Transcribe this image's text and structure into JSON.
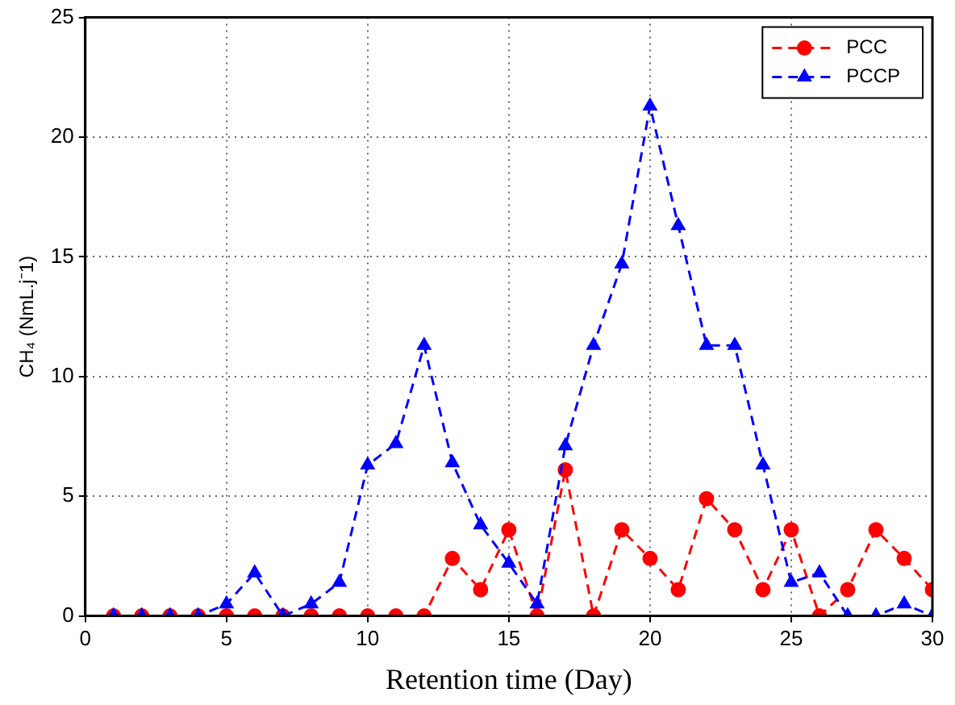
{
  "chart_data": {
    "type": "line",
    "xlabel": "Retention time (Day)",
    "ylabel": "CH₄ (NmL.j⁻1)",
    "x": [
      1,
      2,
      3,
      4,
      5,
      6,
      7,
      8,
      9,
      10,
      11,
      12,
      13,
      14,
      15,
      16,
      17,
      18,
      19,
      20,
      21,
      22,
      23,
      24,
      25,
      26,
      27,
      28,
      29,
      30
    ],
    "series": [
      {
        "name": "PCC",
        "color": "#ff0000",
        "marker": "circle",
        "values": [
          0,
          0,
          0,
          0,
          0,
          0,
          0,
          0,
          0,
          0,
          0,
          0,
          2.4,
          1.1,
          3.6,
          0,
          6.1,
          0,
          3.6,
          2.4,
          1.1,
          4.9,
          3.6,
          1.1,
          3.6,
          0,
          1.1,
          3.6,
          2.4,
          1.1
        ]
      },
      {
        "name": "PCCP",
        "color": "#0000ff",
        "marker": "triangle",
        "values": [
          0,
          0,
          0,
          0,
          0.5,
          1.8,
          0,
          0.5,
          1.4,
          6.3,
          7.2,
          11.3,
          6.4,
          3.8,
          2.2,
          0.5,
          7.1,
          11.3,
          14.7,
          21.3,
          16.3,
          11.3,
          11.3,
          6.3,
          1.4,
          1.8,
          0,
          0,
          0.5,
          0
        ]
      }
    ],
    "xlim": [
      0,
      30
    ],
    "xticks": [
      0,
      5,
      10,
      15,
      20,
      25,
      30
    ],
    "ylim": [
      0,
      25
    ],
    "yticks": [
      0,
      5,
      10,
      15,
      20,
      25
    ],
    "grid": true,
    "legend": "top right",
    "line_style": "dashed"
  }
}
